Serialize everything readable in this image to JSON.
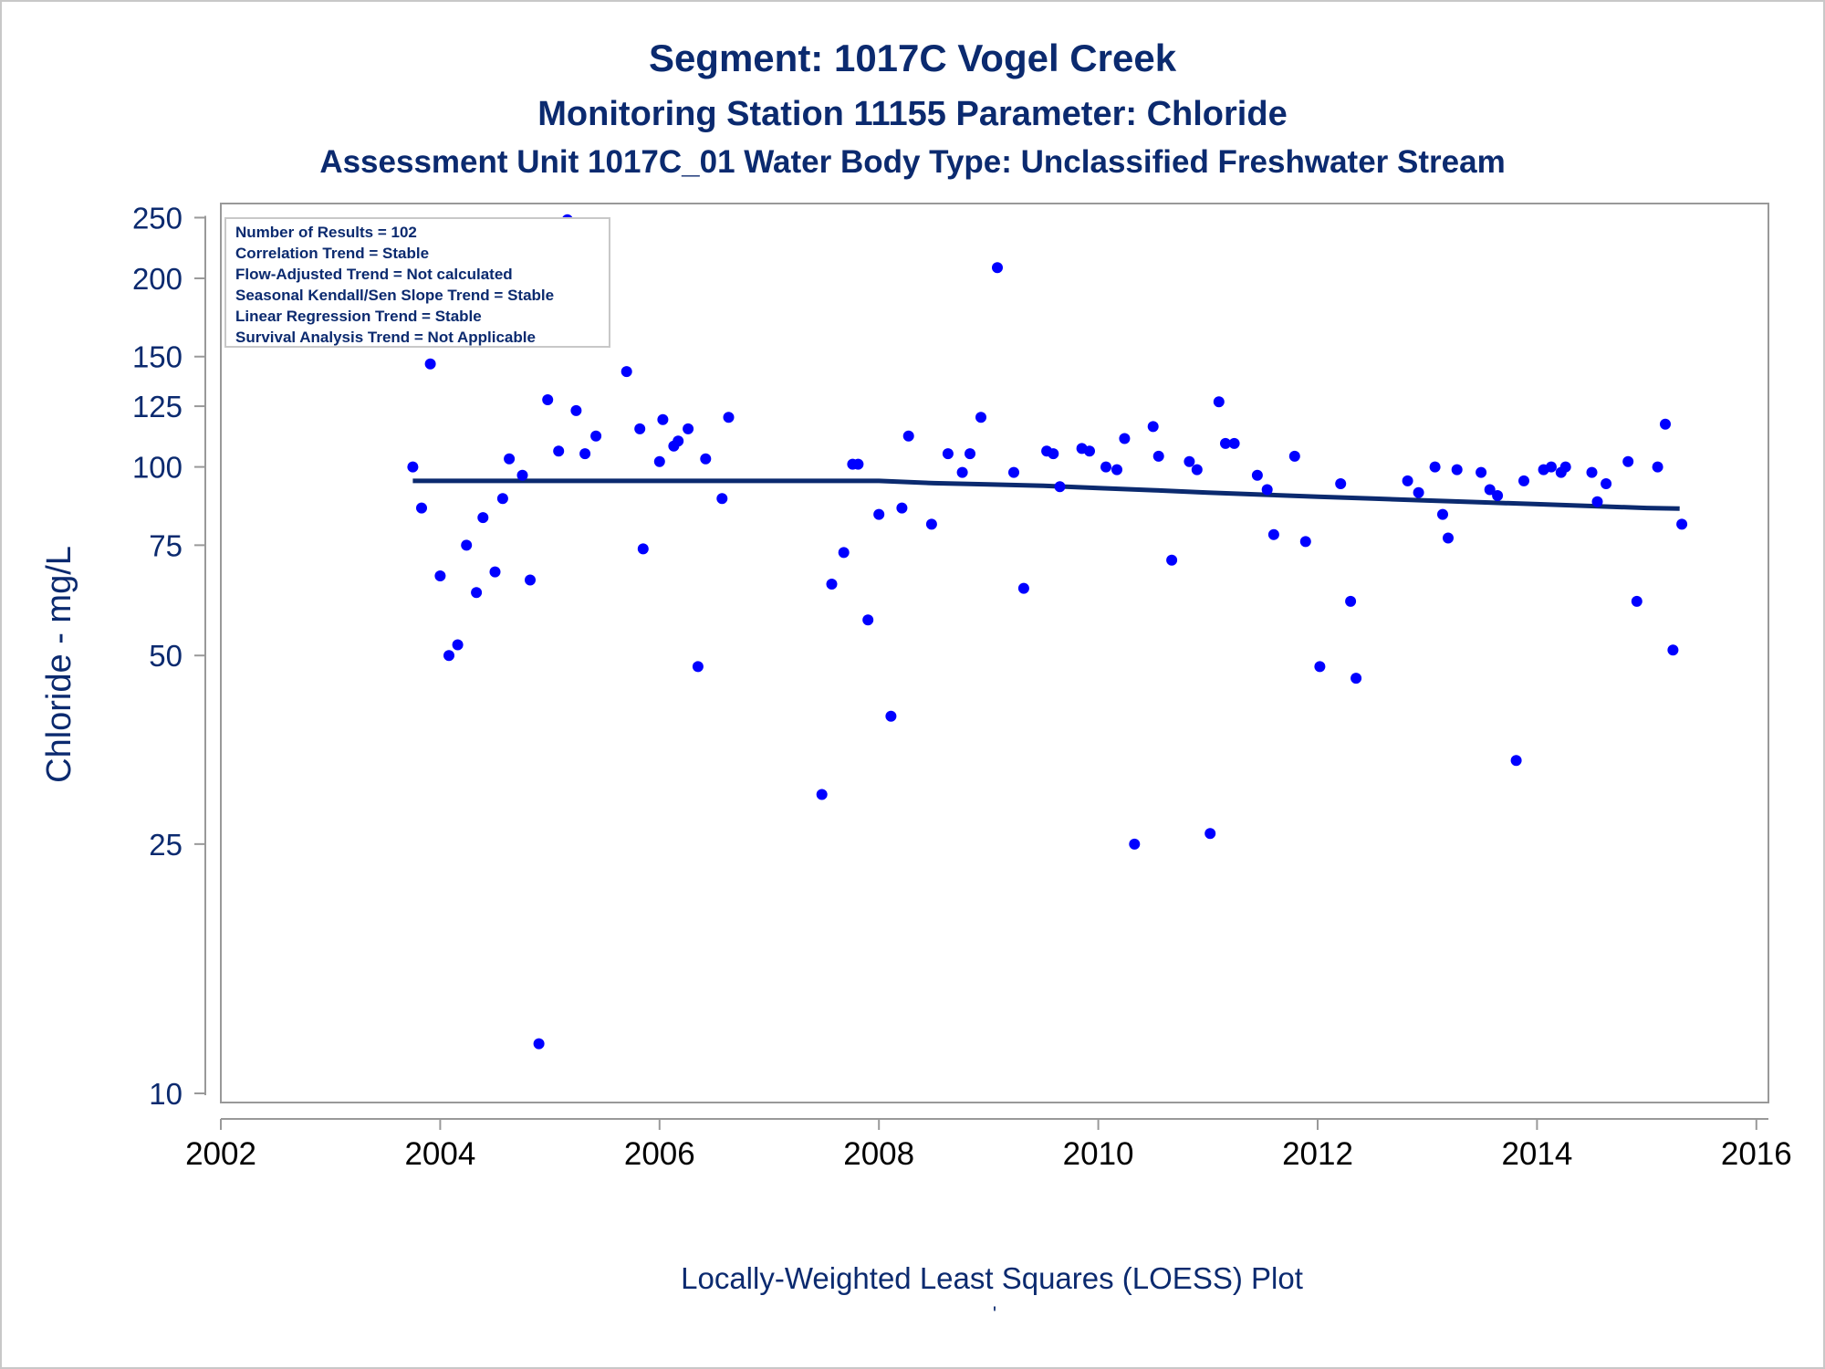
{
  "colors": {
    "text": "#0b2a6f",
    "marker": "#0000ff",
    "trend_line": "#0b2a6f",
    "frame": "#999999",
    "outer_border": "#c8c8c8"
  },
  "chart_data": {
    "type": "scatter",
    "title": "Segment: 1017C  Vogel Creek",
    "subtitle": "Monitoring Station 11155 Parameter: Chloride",
    "subtitle2": "Assessment Unit 1017C_01   Water Body Type: Unclassified Freshwater Stream",
    "xlabel": "",
    "ylabel": "Chloride - mg/L",
    "footnote": "Locally-Weighted Least Squares (LOESS) Plot",
    "footnote2": "'",
    "x_scale": "time",
    "y_scale": "log",
    "xlim": [
      2002,
      2016
    ],
    "ylim": [
      10,
      250
    ],
    "x_ticks": [
      2002,
      2004,
      2006,
      2008,
      2010,
      2012,
      2014,
      2016
    ],
    "y_ticks": [
      10,
      25,
      50,
      75,
      100,
      125,
      150,
      200,
      250
    ],
    "grid": false,
    "legend": "none",
    "stats_box": {
      "position": "top-left",
      "lines": [
        "Number of Results = 102",
        "Correlation Trend = Stable",
        "Flow-Adjusted Trend = Not calculated",
        "Seasonal Kendall/Sen Slope Trend = Stable",
        "Linear Regression Trend = Stable",
        "Survival Analysis Trend = Not Applicable"
      ]
    },
    "series": [
      {
        "kind": "points",
        "points": [
          [
            2003.75,
            100
          ],
          [
            2003.83,
            86
          ],
          [
            2003.91,
            146
          ],
          [
            2004.0,
            67
          ],
          [
            2004.08,
            50
          ],
          [
            2004.16,
            52
          ],
          [
            2004.24,
            75
          ],
          [
            2004.33,
            63
          ],
          [
            2004.39,
            83
          ],
          [
            2004.5,
            68
          ],
          [
            2004.57,
            89
          ],
          [
            2004.63,
            103
          ],
          [
            2004.75,
            97
          ],
          [
            2004.82,
            66
          ],
          [
            2004.9,
            12
          ],
          [
            2004.98,
            128
          ],
          [
            2005.08,
            106
          ],
          [
            2005.16,
            248
          ],
          [
            2005.24,
            123
          ],
          [
            2005.32,
            105
          ],
          [
            2005.42,
            112
          ],
          [
            2005.7,
            142
          ],
          [
            2005.82,
            115
          ],
          [
            2005.85,
            74
          ],
          [
            2006.0,
            102
          ],
          [
            2006.03,
            119
          ],
          [
            2006.13,
            108
          ],
          [
            2006.17,
            110
          ],
          [
            2006.26,
            115
          ],
          [
            2006.35,
            48
          ],
          [
            2006.42,
            103
          ],
          [
            2006.57,
            89
          ],
          [
            2006.63,
            120
          ],
          [
            2007.48,
            30
          ],
          [
            2007.57,
            65
          ],
          [
            2007.68,
            73
          ],
          [
            2007.76,
            101
          ],
          [
            2007.81,
            101
          ],
          [
            2007.9,
            57
          ],
          [
            2008.0,
            84
          ],
          [
            2008.11,
            40
          ],
          [
            2008.21,
            86
          ],
          [
            2008.27,
            112
          ],
          [
            2008.48,
            81
          ],
          [
            2008.63,
            105
          ],
          [
            2008.76,
            98
          ],
          [
            2008.83,
            105
          ],
          [
            2008.93,
            120
          ],
          [
            2009.08,
            208
          ],
          [
            2009.23,
            98
          ],
          [
            2009.32,
            64
          ],
          [
            2009.53,
            106
          ],
          [
            2009.59,
            105
          ],
          [
            2009.65,
            93
          ],
          [
            2009.85,
            107
          ],
          [
            2009.92,
            106
          ],
          [
            2010.07,
            100
          ],
          [
            2010.17,
            99
          ],
          [
            2010.24,
            111
          ],
          [
            2010.33,
            25
          ],
          [
            2010.5,
            116
          ],
          [
            2010.55,
            104
          ],
          [
            2010.67,
            71
          ],
          [
            2010.83,
            102
          ],
          [
            2010.9,
            99
          ],
          [
            2011.02,
            26
          ],
          [
            2011.1,
            127
          ],
          [
            2011.16,
            109
          ],
          [
            2011.24,
            109
          ],
          [
            2011.45,
            97
          ],
          [
            2011.54,
            92
          ],
          [
            2011.6,
            78
          ],
          [
            2011.79,
            104
          ],
          [
            2011.89,
            76
          ],
          [
            2012.02,
            48
          ],
          [
            2012.21,
            94
          ],
          [
            2012.3,
            61
          ],
          [
            2012.35,
            46
          ],
          [
            2012.82,
            95
          ],
          [
            2012.92,
            91
          ],
          [
            2013.07,
            100
          ],
          [
            2013.14,
            84
          ],
          [
            2013.19,
            77
          ],
          [
            2013.27,
            99
          ],
          [
            2013.49,
            98
          ],
          [
            2013.57,
            92
          ],
          [
            2013.64,
            90
          ],
          [
            2013.81,
            34
          ],
          [
            2013.88,
            95
          ],
          [
            2014.06,
            99
          ],
          [
            2014.13,
            100
          ],
          [
            2014.22,
            98
          ],
          [
            2014.26,
            100
          ],
          [
            2014.5,
            98
          ],
          [
            2014.55,
            88
          ],
          [
            2014.63,
            94
          ],
          [
            2014.83,
            102
          ],
          [
            2014.91,
            61
          ],
          [
            2015.1,
            100
          ],
          [
            2015.17,
            117
          ],
          [
            2015.24,
            51
          ],
          [
            2015.32,
            81
          ]
        ]
      },
      {
        "kind": "loess",
        "points": [
          [
            2003.75,
            95
          ],
          [
            2005.0,
            95
          ],
          [
            2006.0,
            95
          ],
          [
            2007.0,
            95
          ],
          [
            2008.0,
            95
          ],
          [
            2008.5,
            94.2
          ],
          [
            2009.0,
            93.8
          ],
          [
            2009.5,
            93.3
          ],
          [
            2010.0,
            92.5
          ],
          [
            2010.5,
            91.8
          ],
          [
            2011.0,
            91.0
          ],
          [
            2011.5,
            90.3
          ],
          [
            2012.0,
            89.6
          ],
          [
            2012.5,
            89.0
          ],
          [
            2013.0,
            88.4
          ],
          [
            2013.5,
            87.8
          ],
          [
            2014.0,
            87.2
          ],
          [
            2014.5,
            86.6
          ],
          [
            2015.0,
            86.0
          ],
          [
            2015.3,
            85.8
          ]
        ]
      }
    ]
  }
}
